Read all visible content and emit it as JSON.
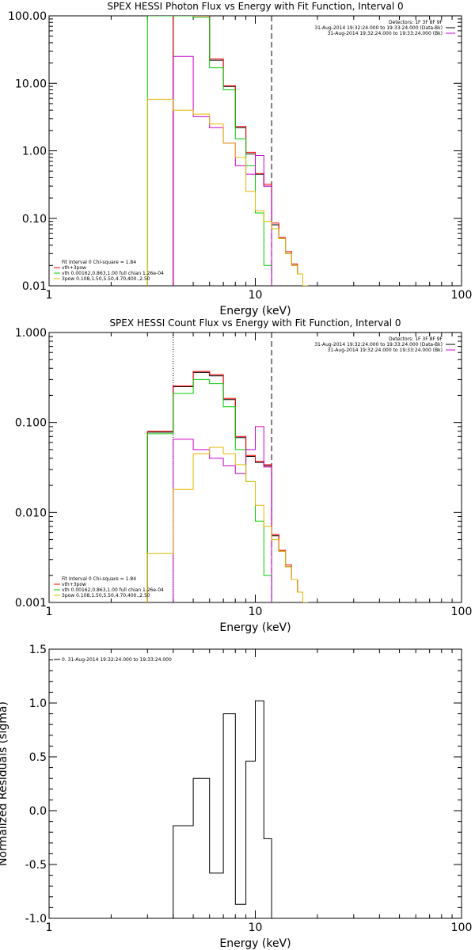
{
  "chart_data": [
    {
      "type": "line",
      "title": "SPEX HESSI Photon Flux vs Energy with Fit Function, Interval 0",
      "xlabel": "Energy (keV)",
      "ylabel": "",
      "xscale": "log",
      "yscale": "log",
      "xlim": [
        1,
        100
      ],
      "ylim": [
        0.01,
        100
      ],
      "xticks": [
        "1",
        "10",
        "100"
      ],
      "yticks": [
        "0.01",
        "0.10",
        "1.00",
        "10.00",
        "100.00"
      ],
      "info_lines": [
        "Detectors: 1F 3F 8F 9F",
        "31-Aug-2014 19:32:24.000 to 19:33:24.000 (Data-Bk)",
        "31-Aug-2014 19:32:24.000 to 19:33:24.000 (Bk)"
      ],
      "legend_lines": [
        {
          "text": "Fit Interval 0   Chi-square = 1.84",
          "color": "#000000"
        },
        {
          "text": "vth+3pow",
          "color": "#ff0000"
        },
        {
          "text": "vth 0.00162,0.863,1.00   full chian 1.26e-04",
          "color": "#00cc00"
        },
        {
          "text": "3pow 0.108,1.50,5.50,4.70,400.,2.50",
          "color": "#e6b800"
        }
      ],
      "edges": [
        3,
        4,
        5,
        6,
        7,
        8,
        9,
        10,
        11,
        12,
        13,
        14,
        15,
        16,
        17,
        18
      ],
      "dashed_x": 12,
      "dotted_x": 4,
      "series": [
        {
          "color": "#000000",
          "values": [
            null,
            100,
            100,
            22,
            9,
            2.2,
            0.9,
            0.45,
            0.3,
            0.08,
            0.05,
            0.03,
            0.02,
            0.015,
            0.01
          ]
        },
        {
          "color": "#ff0000",
          "values": [
            null,
            100,
            100,
            23,
            9.2,
            2.3,
            0.95,
            0.46,
            0.32,
            0.085,
            0.052,
            0.032,
            0.021,
            0.015,
            0.01
          ]
        },
        {
          "color": "#00cc00",
          "values": [
            100,
            100,
            95,
            17,
            8,
            1.5,
            0.6,
            0.12,
            0.02,
            0.004
          ]
        },
        {
          "color": "#cc00cc",
          "values": [
            null,
            25,
            3.2,
            2.2,
            1.3,
            0.6,
            0.45,
            0.85,
            0.3
          ]
        },
        {
          "color": "#e6b800",
          "values": [
            5.8,
            4,
            3.5,
            2.5,
            1.3,
            0.8,
            0.25,
            0.13,
            0.09,
            0.07,
            0.05,
            0.03,
            0.02,
            0.015,
            0.01
          ]
        }
      ]
    },
    {
      "type": "line",
      "title": "SPEX HESSI Count Flux vs Energy with Fit Function, Interval 0",
      "xlabel": "Energy (keV)",
      "ylabel": "",
      "xscale": "log",
      "yscale": "log",
      "xlim": [
        1,
        100
      ],
      "ylim": [
        0.001,
        1
      ],
      "xticks": [
        "1",
        "10",
        "100"
      ],
      "yticks": [
        "0.001",
        "0.010",
        "0.100",
        "1.000"
      ],
      "info_lines": [
        "Detectors: 1F 3F 8F 9F",
        "31-Aug-2014 19:32:24.000 to 19:33:24.000 (Data-Bk)",
        "31-Aug-2014 19:32:24.000 to 19:33:24.000 (Bk)"
      ],
      "legend_lines": [
        {
          "text": "Fit Interval 0   Chi-square = 1.84",
          "color": "#000000"
        },
        {
          "text": "vth+3pow",
          "color": "#ff0000"
        },
        {
          "text": "vth 0.00162,0.863,1.00   full chian 1.26e-04",
          "color": "#00cc00"
        },
        {
          "text": "3pow 0.108,1.50,5.50,4.70,400.,2.50",
          "color": "#e6b800"
        }
      ],
      "edges": [
        3,
        4,
        5,
        6,
        7,
        8,
        9,
        10,
        11,
        12,
        13,
        14,
        15,
        16,
        17,
        18,
        19
      ],
      "dashed_x": 12,
      "dotted_x": 4,
      "series": [
        {
          "color": "#000000",
          "values": [
            0.078,
            0.25,
            0.36,
            0.33,
            0.18,
            0.068,
            0.042,
            0.036,
            0.033,
            0.0055,
            0.0037,
            0.0025,
            0.0018,
            0.0013,
            0.001
          ]
        },
        {
          "color": "#ff0000",
          "values": [
            0.08,
            0.255,
            0.37,
            0.34,
            0.185,
            0.07,
            0.043,
            0.037,
            0.034,
            0.0057,
            0.0038,
            0.0026,
            0.0018,
            0.0013,
            0.001
          ]
        },
        {
          "color": "#00cc00",
          "values": [
            0.075,
            0.21,
            0.3,
            0.27,
            0.15,
            0.05,
            0.022,
            0.008,
            0.002,
            0.0005
          ]
        },
        {
          "color": "#cc00cc",
          "values": [
            null,
            0.065,
            0.05,
            0.04,
            0.033,
            0.027,
            0.05,
            0.09,
            0.032
          ]
        },
        {
          "color": "#e6b800",
          "values": [
            0.0035,
            0.018,
            0.045,
            0.053,
            0.045,
            0.034,
            0.022,
            0.012,
            0.007,
            0.005,
            0.0037,
            0.0025,
            0.0018,
            0.0013,
            0.001,
            0.0008
          ]
        }
      ]
    },
    {
      "type": "line",
      "title": "",
      "xlabel": "Energy (keV)",
      "ylabel": "Normalized Residuals (sigma)",
      "xscale": "log",
      "yscale": "linear",
      "xlim": [
        1,
        100
      ],
      "ylim": [
        -1,
        1.5
      ],
      "xticks": [
        "1",
        "10",
        "100"
      ],
      "yticks": [
        "-1.0",
        "-0.5",
        "0.0",
        "0.5",
        "1.0",
        "1.5"
      ],
      "legend_lines": [
        {
          "text": "0. 31-Aug-2014 19:32:24.000 to 19:33:24.000",
          "color": "#000000"
        }
      ],
      "edges": [
        4,
        5,
        6,
        7,
        8,
        9,
        10,
        11,
        12
      ],
      "series": [
        {
          "color": "#000000",
          "values": [
            -0.14,
            0.3,
            -0.58,
            0.9,
            -0.87,
            0.46,
            1.02,
            -0.26
          ]
        }
      ]
    }
  ]
}
